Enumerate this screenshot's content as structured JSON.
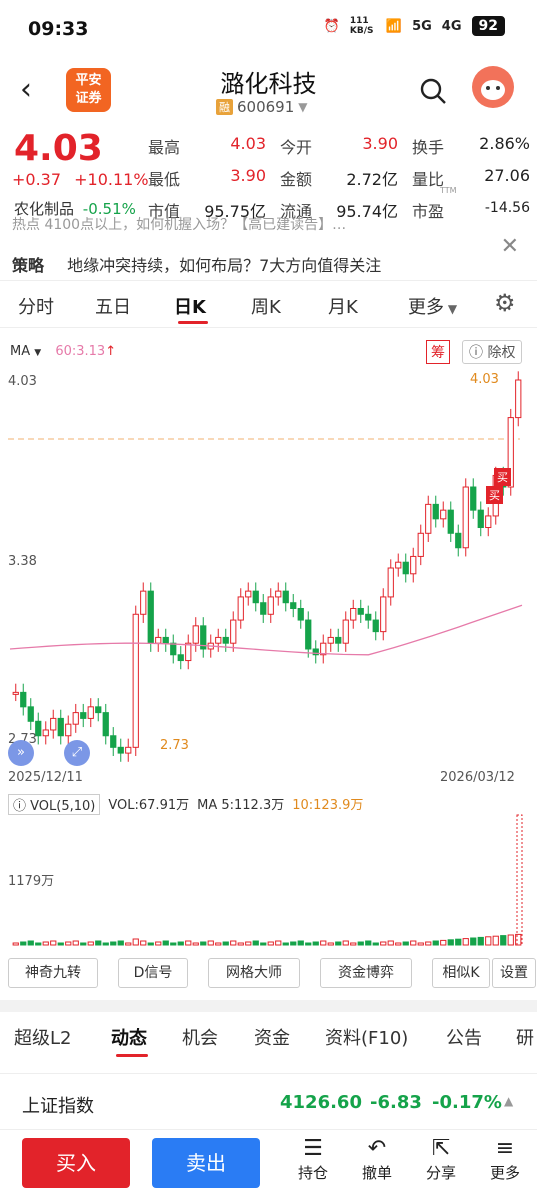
{
  "status": {
    "time": "09:33",
    "net_speed": "111 KB/S",
    "signal1": "5G",
    "signal2": "4G",
    "battery": "92"
  },
  "header": {
    "back_icon": "chevron-left",
    "brand_line1": "平安",
    "brand_line2": "证券",
    "stock_name": "潞化科技",
    "tag": "融",
    "stock_code": "600691"
  },
  "quote": {
    "price": "4.03",
    "change": "+0.37",
    "change_pct": "+10.11%",
    "sector_name": "农化制品",
    "sector_pct": "-0.51%",
    "cells": [
      {
        "label": "最高",
        "value": "4.03"
      },
      {
        "label": "今开",
        "value": "3.90"
      },
      {
        "label": "换手",
        "value": "2.86%"
      },
      {
        "label": "最低",
        "value": "3.90"
      },
      {
        "label": "金额",
        "value": "2.72亿"
      },
      {
        "label": "量比",
        "value": "27.06"
      },
      {
        "label": "市值",
        "value": "95.75亿"
      },
      {
        "label": "流通",
        "value": "95.74亿"
      },
      {
        "label": "市盈",
        "value": "-14.56"
      }
    ],
    "pe_tag": "TTM"
  },
  "news": {
    "line1": "热点  4100点以上，如何机握入场？【高已建读告】…",
    "tag": "策略",
    "line2": "地缘冲突持续，如何布局？7大方向值得关注"
  },
  "period_tabs": [
    "分时",
    "五日",
    "日K",
    "周K",
    "月K",
    "更多"
  ],
  "chart": {
    "ma_label": "MA",
    "ma60_label": "60:3.13",
    "chou_label": "筹",
    "chuquan_label": "除权",
    "price_high": "4.03",
    "price_mid": "3.38",
    "price_low": "2.73",
    "date_start": "2025/12/11",
    "date_end": "2026/03/12",
    "high_marker": "4.03",
    "low_marker": "2.73",
    "buy_tag": "买"
  },
  "volume": {
    "selector": "VOL(5,10)",
    "vol_text": "VOL:67.91万",
    "ma5_text": "MA 5:112.3万",
    "ma10_text": "10:123.9万",
    "axis_label": "1179万"
  },
  "indicators": [
    "神奇九转",
    "D信号",
    "网格大师",
    "资金博弈",
    "相似K",
    "设置"
  ],
  "bottom_tabs": [
    "超级L2",
    "动态",
    "机会",
    "资金",
    "资料(F10)",
    "公告",
    "研"
  ],
  "index_bar": {
    "name": "上证指数",
    "value": "4126.60",
    "change": "-6.83",
    "pct": "-0.17%"
  },
  "actions": {
    "buy": "买入",
    "sell": "卖出",
    "hold": "持仓",
    "cancel": "撤单",
    "share": "分享",
    "more": "更多"
  },
  "colors": {
    "up": "#e2232a",
    "down": "#15a34a",
    "ma60": "#e67aa9",
    "accent": "#f26522"
  }
}
